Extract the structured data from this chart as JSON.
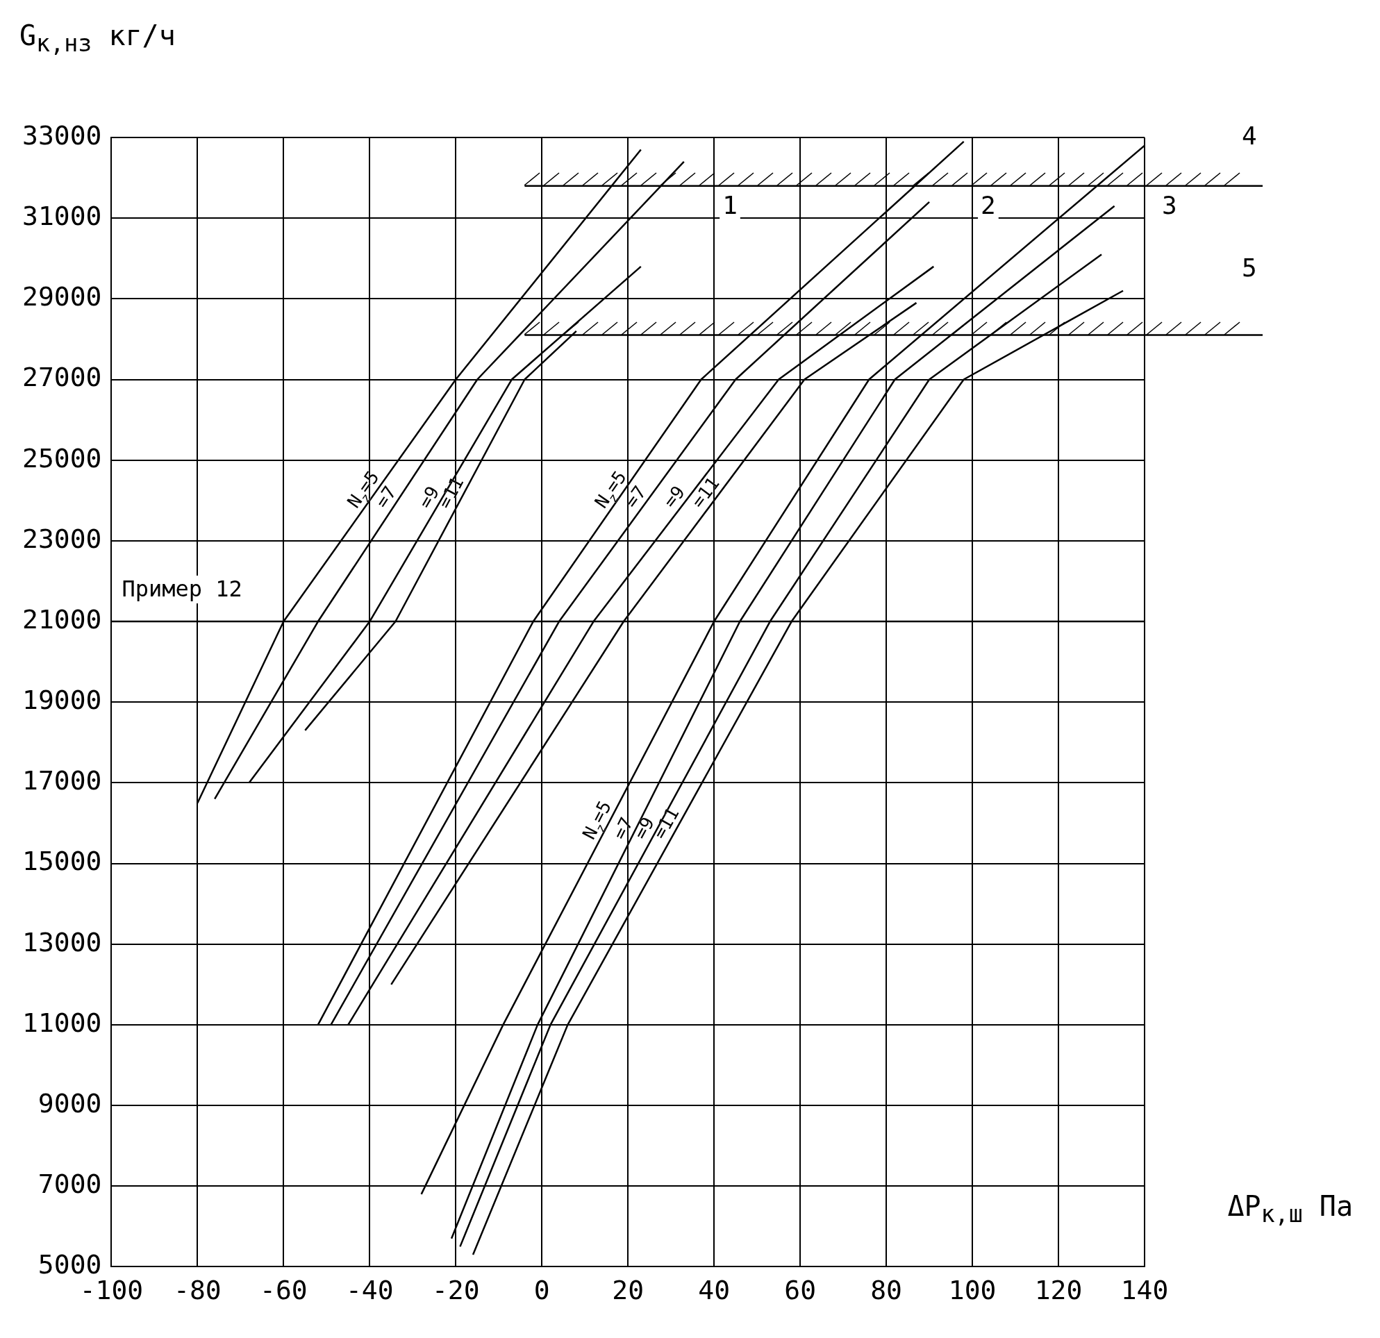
{
  "chart_data": {
    "type": "line",
    "xlabel": "ΔP$_{к,ш}$ Па",
    "ylabel": "G$_{к,нз}$ кг/ч",
    "xlim": [
      -100,
      140
    ],
    "ylim": [
      5000,
      33000
    ],
    "xticks": [
      -100,
      -80,
      -60,
      -40,
      -20,
      0,
      20,
      40,
      60,
      80,
      100,
      120,
      140
    ],
    "yticks": [
      5000,
      7000,
      9000,
      11000,
      13000,
      15000,
      17000,
      19000,
      21000,
      23000,
      25000,
      27000,
      29000,
      31000,
      33000
    ],
    "grid": true,
    "legend": false,
    "marker": "none",
    "line_style": "solid",
    "series": [
      {
        "name": "N$_{z}$=5",
        "color": "#000000",
        "x": [
          -80,
          -60,
          -20,
          23
        ],
        "values": [
          16500,
          21000,
          27000,
          32700
        ]
      },
      {
        "name": "=7",
        "color": "#000000",
        "x": [
          -76,
          -52,
          -15,
          33
        ],
        "values": [
          16600,
          21000,
          27000,
          32400
        ]
      },
      {
        "name": "=9",
        "color": "#000000",
        "x": [
          -68,
          -40,
          -7,
          23
        ],
        "values": [
          17000,
          21000,
          27000,
          29800
        ]
      },
      {
        "name": "=11",
        "color": "#000000",
        "x": [
          -55,
          -34,
          -4,
          8
        ],
        "values": [
          18300,
          21000,
          27000,
          28200
        ]
      },
      {
        "name": "N$_{z}$=5",
        "color": "#000000",
        "x": [
          -52,
          -2,
          37,
          98
        ],
        "values": [
          11000,
          21000,
          27000,
          32900
        ]
      },
      {
        "name": "=7",
        "color": "#000000",
        "x": [
          -49,
          4,
          45,
          90
        ],
        "values": [
          11000,
          21000,
          27000,
          31400
        ]
      },
      {
        "name": "=9",
        "color": "#000000",
        "x": [
          -45,
          12,
          55,
          91
        ],
        "values": [
          11000,
          21000,
          27000,
          29800
        ]
      },
      {
        "name": "=11",
        "color": "#000000",
        "x": [
          -35,
          19,
          61,
          87
        ],
        "values": [
          12000,
          21000,
          27000,
          28900
        ]
      },
      {
        "name": "N$_{z}$=5",
        "color": "#000000",
        "x": [
          -28,
          -9,
          40,
          76,
          140
        ],
        "values": [
          6800,
          11000,
          21000,
          27000,
          32800
        ]
      },
      {
        "name": "=7",
        "color": "#000000",
        "x": [
          -21,
          -1,
          46,
          82,
          133
        ],
        "values": [
          5700,
          11000,
          21000,
          27000,
          31300
        ]
      },
      {
        "name": "=9",
        "color": "#000000",
        "x": [
          -19,
          2,
          53,
          90,
          130
        ],
        "values": [
          5500,
          11000,
          21000,
          27000,
          30100
        ]
      },
      {
        "name": "=11",
        "color": "#000000",
        "x": [
          -16,
          6,
          58,
          98,
          135
        ],
        "values": [
          5300,
          11000,
          21000,
          27000,
          29200
        ]
      }
    ],
    "ref_lines": [
      {
        "axis": "y",
        "value": 31800,
        "line_style": "solid"
      },
      {
        "axis": "y",
        "value": 28100,
        "line_style": "solid"
      },
      {
        "axis": "y",
        "value": 21000,
        "label": "Пример 12",
        "line_style": "solid"
      }
    ],
    "annotations": [
      "1",
      "2",
      "3",
      "4",
      "5"
    ]
  }
}
